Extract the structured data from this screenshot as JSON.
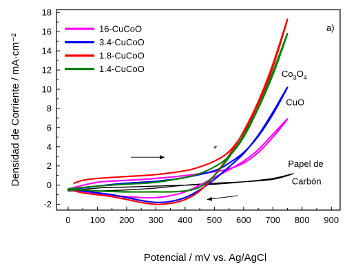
{
  "chart_data": {
    "type": "line",
    "xlabel": "Potencial / mV vs. Ag/AgCl",
    "ylabel": "Densidad de Corriente / mA·cm⁻²",
    "xlim": [
      -40,
      930
    ],
    "ylim": [
      -2.6,
      18.3
    ],
    "xticks": [
      0,
      100,
      200,
      300,
      400,
      500,
      600,
      700,
      800,
      900
    ],
    "yticks": [
      -2,
      0,
      2,
      4,
      6,
      8,
      10,
      12,
      14,
      16,
      18
    ],
    "panel_label": "a)",
    "legend": {
      "position": "top-left",
      "entries": [
        {
          "label": "16-CuCoO",
          "color": "#ff00ff"
        },
        {
          "label": "3.4-CuCoO",
          "color": "#0000ff"
        },
        {
          "label": "1.8-CuCoO",
          "color": "#ff0000"
        },
        {
          "label": "1.4-CuCoO",
          "color": "#008000"
        }
      ]
    },
    "annotations": {
      "co3o4": {
        "base": "Co",
        "sub1": "3",
        "mid": "O",
        "sub2": "4",
        "x": 730,
        "y": 11.3
      },
      "cuo": {
        "text": "CuO",
        "x": 745,
        "y": 8.3
      },
      "papel_line1": {
        "text": "Papel de",
        "x": 752,
        "y": 1.9
      },
      "papel_line2": {
        "text": "Carbón",
        "x": 765,
        "y": 0.1
      },
      "star": {
        "text": "*",
        "x": 497,
        "y": 3.5
      }
    },
    "arrows": [
      {
        "from": [
          215,
          2.9
        ],
        "to": [
          330,
          2.9
        ]
      },
      {
        "from": [
          580,
          -1.1
        ],
        "to": [
          475,
          -1.5
        ]
      }
    ],
    "series": [
      {
        "name": "Papel de Carbón",
        "color": "#000000",
        "width": 1.4,
        "x": [
          0,
          100,
          200,
          300,
          400,
          500,
          600,
          700,
          770,
          700,
          600,
          500,
          400,
          300,
          200,
          100,
          0
        ],
        "y": [
          -0.6,
          -0.3,
          -0.2,
          -0.1,
          0.0,
          0.1,
          0.35,
          0.7,
          1.2,
          0.6,
          0.35,
          0.2,
          0.0,
          -0.3,
          -0.5,
          -0.6,
          -0.6
        ]
      },
      {
        "name": "16-CuCoO",
        "color": "#ff00ff",
        "width": 2.2,
        "x": [
          0,
          100,
          200,
          300,
          400,
          500,
          550,
          600,
          650,
          700,
          750,
          700,
          650,
          600,
          550,
          500,
          450,
          400,
          350,
          300,
          250,
          200,
          150,
          100,
          50,
          0
        ],
        "y": [
          -0.4,
          0.3,
          0.5,
          0.7,
          1.0,
          1.4,
          1.7,
          2.3,
          3.4,
          5.0,
          6.9,
          5.3,
          3.7,
          2.5,
          1.6,
          0.8,
          0.0,
          -0.7,
          -1.1,
          -1.3,
          -1.3,
          -1.2,
          -1.1,
          -0.9,
          -0.7,
          -0.5
        ]
      },
      {
        "name": "3.4-CuCoO",
        "color": "#0000ff",
        "width": 2.2,
        "x": [
          0,
          100,
          200,
          300,
          400,
          500,
          550,
          600,
          650,
          700,
          750,
          700,
          650,
          600,
          550,
          500,
          450,
          400,
          350,
          300,
          250,
          200,
          150,
          100,
          50,
          0
        ],
        "y": [
          -0.5,
          -0.1,
          0.2,
          0.4,
          0.8,
          1.5,
          2.3,
          3.4,
          5.1,
          7.4,
          10.2,
          7.6,
          5.2,
          3.3,
          1.9,
          0.6,
          -0.5,
          -1.3,
          -1.7,
          -1.8,
          -1.6,
          -1.3,
          -1.0,
          -0.8,
          -0.6,
          -0.5
        ]
      },
      {
        "name": "1.8-CuCoO",
        "color": "#ff0000",
        "width": 2.2,
        "x": [
          20,
          50,
          100,
          200,
          300,
          400,
          450,
          500,
          550,
          600,
          650,
          700,
          750,
          700,
          650,
          600,
          550,
          500,
          450,
          400,
          350,
          300,
          250,
          200,
          150,
          100,
          50,
          20
        ],
        "y": [
          0.2,
          0.5,
          0.7,
          0.9,
          1.1,
          1.5,
          1.9,
          2.5,
          3.5,
          5.5,
          8.5,
          12.3,
          17.3,
          12.6,
          8.7,
          5.6,
          3.1,
          1.0,
          -0.6,
          -1.5,
          -1.9,
          -2.0,
          -1.8,
          -1.5,
          -1.2,
          -1.0,
          -0.8,
          -0.6
        ]
      },
      {
        "name": "1.4-CuCoO",
        "color": "#008000",
        "width": 2.2,
        "x": [
          0,
          100,
          200,
          300,
          400,
          450,
          500,
          550,
          600,
          650,
          700,
          750,
          700,
          650,
          600,
          550,
          500,
          450,
          400,
          350,
          300,
          200,
          100,
          50,
          0
        ],
        "y": [
          -0.4,
          -0.1,
          0.1,
          0.3,
          0.8,
          1.2,
          1.9,
          3.0,
          5.0,
          8.0,
          11.5,
          15.8,
          11.8,
          8.1,
          5.2,
          2.9,
          1.0,
          -0.2,
          -0.6,
          -0.7,
          -0.7,
          -0.7,
          -0.6,
          -0.5,
          -0.5
        ]
      }
    ]
  }
}
